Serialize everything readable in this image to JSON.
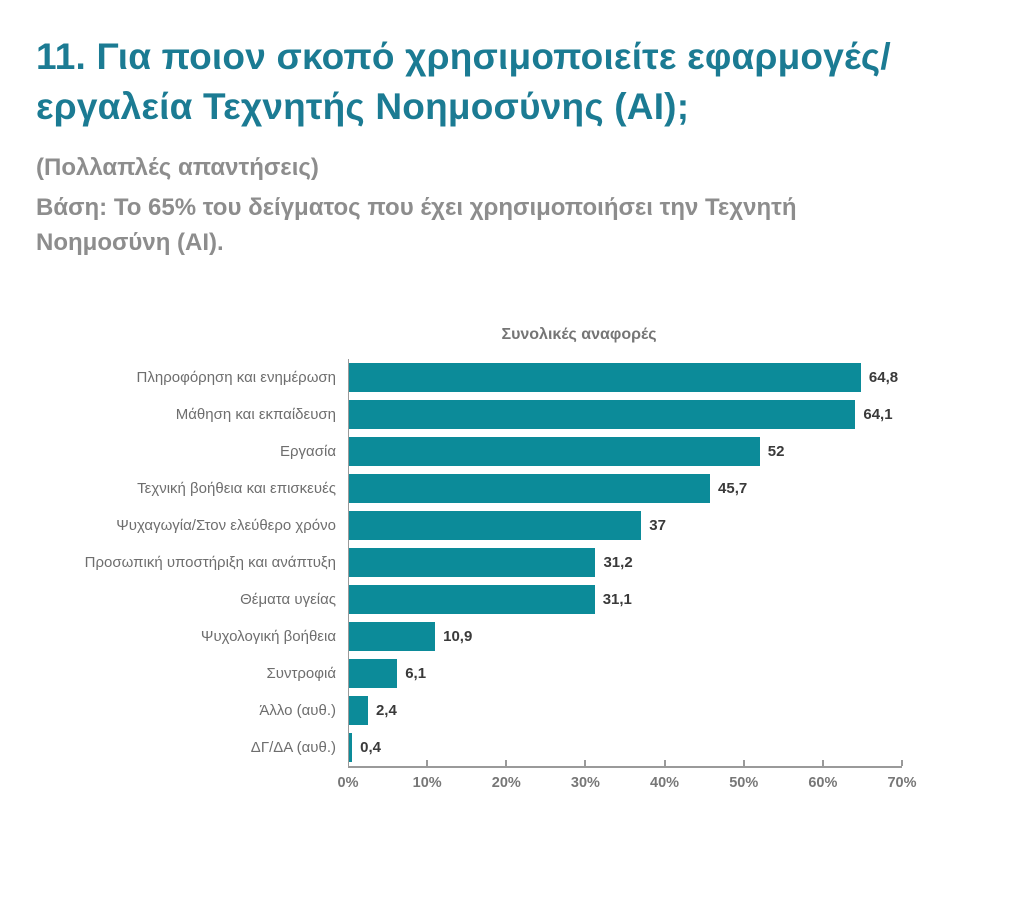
{
  "header": {
    "title_line1": "11. Για ποιον σκοπό χρησιμοποιείτε εφαρμογές/",
    "title_line2": "εργαλεία Τεχνητής Νοημοσύνης (AI);",
    "subtitle": "(Πολλαπλές απαντήσεις)",
    "basis_line1": "Βάση: Το 65% του δείγματος που έχει χρησιμοποιήσει την Τεχνητή",
    "basis_line2": "Νοημοσύνη (AI)."
  },
  "chart_data": {
    "type": "bar",
    "orientation": "horizontal",
    "title": "Συνολικές αναφορές",
    "categories": [
      "Πληροφόρηση και ενημέρωση",
      "Μάθηση και εκπαίδευση",
      "Εργασία",
      "Τεχνική βοήθεια και επισκευές",
      "Ψυχαγωγία/Στον ελεύθερο χρόνο",
      "Προσωπική υποστήριξη και ανάπτυξη",
      "Θέματα υγείας",
      "Ψυχολογική βοήθεια",
      "Συντροφιά",
      "Άλλο (αυθ.)",
      "ΔΓ/ΔΑ (αυθ.)"
    ],
    "values": [
      64.8,
      64.1,
      52,
      45.7,
      37,
      31.2,
      31.1,
      10.9,
      6.1,
      2.4,
      0.4
    ],
    "value_labels": [
      "64,8",
      "64,1",
      "52",
      "45,7",
      "37",
      "31,2",
      "31,1",
      "10,9",
      "6,1",
      "2,4",
      "0,4"
    ],
    "x_ticks": [
      "0%",
      "10%",
      "20%",
      "30%",
      "40%",
      "50%",
      "60%",
      "70%"
    ],
    "xlim": [
      0,
      70
    ],
    "xlabel": "",
    "ylabel": "",
    "grid": false,
    "legend": null,
    "bar_color": "#0c8b99"
  },
  "colors": {
    "title": "#1b7b93",
    "subtitle": "#8d8d8d",
    "chart_title": "#757575",
    "category_label": "#6e6e6e",
    "value_label": "#3a3a3a",
    "axis": "#9a9a9a",
    "background": "#ffffff"
  }
}
